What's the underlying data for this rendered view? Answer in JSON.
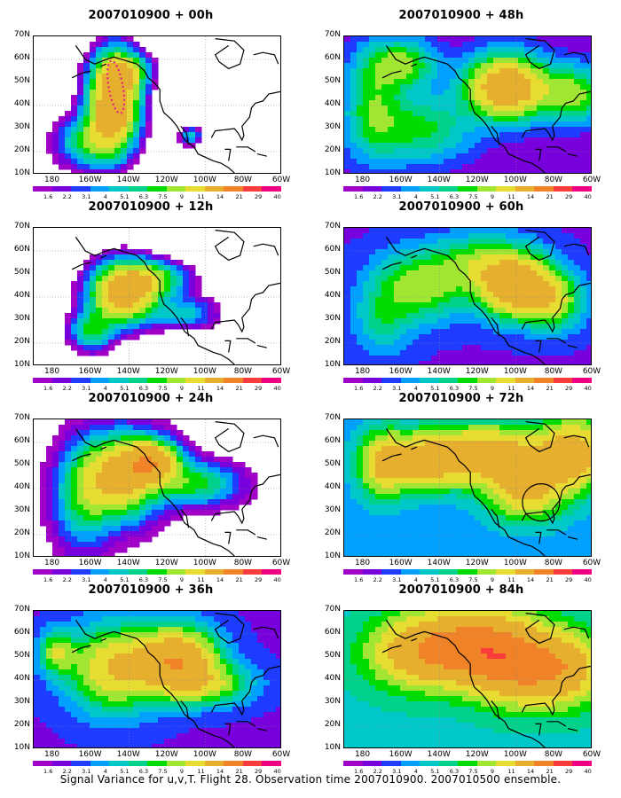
{
  "panels": [
    {
      "title": "2007010900 + 00h"
    },
    {
      "title": "2007010900 + 48h"
    },
    {
      "title": "2007010900 + 12h"
    },
    {
      "title": "2007010900 + 60h"
    },
    {
      "title": "2007010900 + 24h"
    },
    {
      "title": "2007010900 + 72h"
    },
    {
      "title": "2007010900 + 36h"
    },
    {
      "title": "2007010900 + 84h"
    }
  ],
  "axes": {
    "lat_labels": [
      "70N",
      "60N",
      "50N",
      "40N",
      "30N",
      "20N",
      "10N"
    ],
    "lon_labels": [
      "180",
      "160W",
      "140W",
      "120W",
      "100W",
      "80W",
      "60W"
    ]
  },
  "colorbar": {
    "labels": [
      "1.6",
      "2.2",
      "3.1",
      "4",
      "5.1",
      "6.3",
      "7.5",
      "9",
      "11",
      "14",
      "21",
      "29",
      "40"
    ],
    "colors": [
      "#a000c8",
      "#7800dc",
      "#1e3cff",
      "#00a0ff",
      "#00c8c8",
      "#00d28c",
      "#00dc00",
      "#a0e632",
      "#e6dc32",
      "#e6af2d",
      "#f08228",
      "#fa3c3c",
      "#f00082"
    ]
  },
  "footer": "Signal Variance for u,v,T. Flight 28. Observation time 2007010900. 2007010500 ensemble."
}
